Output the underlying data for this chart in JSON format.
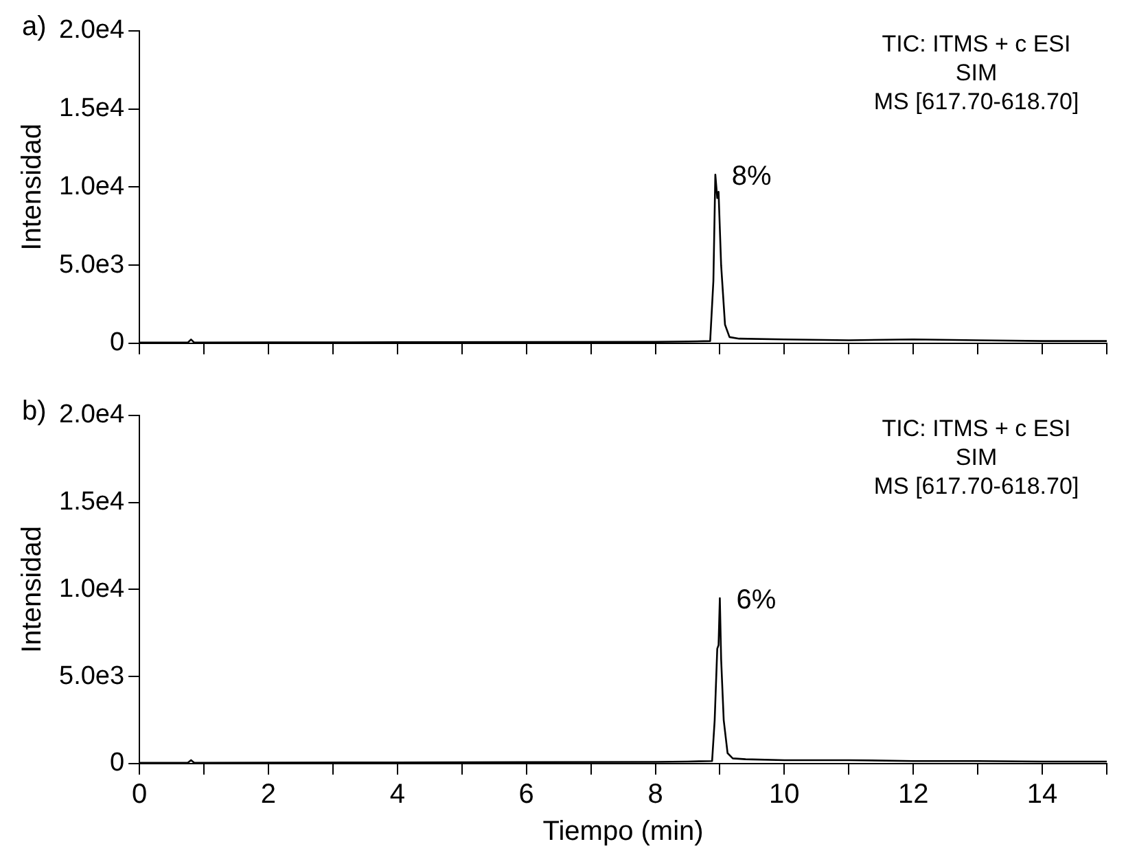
{
  "chart_data": [
    {
      "type": "line",
      "title": "a)",
      "ylabel": "Intensidad",
      "annotations": [
        "TIC: ITMS + c ESI",
        "SIM",
        "MS [617.70-618.70]",
        {
          "text": "8%",
          "x": 8.93,
          "y": 10800
        }
      ],
      "series": [
        {
          "color": "#000000",
          "x": [
            0,
            0.75,
            0.8,
            0.85,
            2,
            4,
            6,
            8,
            8.5,
            8.85,
            8.9,
            8.93,
            8.96,
            8.98,
            9.02,
            9.08,
            9.15,
            9.3,
            10,
            11,
            12,
            13,
            14,
            15
          ],
          "values": [
            50,
            50,
            250,
            50,
            60,
            70,
            90,
            100,
            120,
            150,
            4000,
            10800,
            9300,
            9700,
            5000,
            1200,
            400,
            300,
            250,
            200,
            250,
            200,
            150,
            150
          ]
        }
      ],
      "xlim": [
        0,
        15
      ],
      "xticks": [
        0,
        {
          "value": 1,
          "label": null
        },
        2,
        {
          "value": 3,
          "label": null
        },
        4,
        {
          "value": 5,
          "label": null
        },
        6,
        {
          "value": 7,
          "label": null
        },
        8,
        {
          "value": 9,
          "label": null
        },
        10,
        {
          "value": 11,
          "label": null
        },
        12,
        {
          "value": 13,
          "label": null
        },
        14,
        {
          "value": 15,
          "label": null
        }
      ],
      "ylim": [
        0,
        20000
      ],
      "yticks": [
        0,
        {
          "value": 5000,
          "label": "5.0e3"
        },
        {
          "value": 10000,
          "label": "1.0e4"
        },
        {
          "value": 15000,
          "label": "1.5e4"
        },
        {
          "value": 20000,
          "label": "2.0e4"
        }
      ],
      "tick_labels": "y",
      "grid": false,
      "legend": false,
      "marker": "none",
      "line_style": "solid"
    },
    {
      "type": "line",
      "title": "b)",
      "xlabel": "Tiempo (min)",
      "ylabel": "Intensidad",
      "annotations": [
        "TIC: ITMS + c ESI",
        "SIM",
        "MS [617.70-618.70]",
        {
          "text": "6%",
          "x": 9.0,
          "y": 9500
        }
      ],
      "series": [
        {
          "color": "#000000",
          "x": [
            0,
            0.75,
            0.8,
            0.85,
            2,
            4,
            6,
            8,
            8.5,
            8.88,
            8.92,
            8.96,
            8.98,
            9.0,
            9.02,
            9.06,
            9.12,
            9.2,
            9.4,
            10,
            11,
            12,
            13,
            14,
            15
          ],
          "values": [
            50,
            50,
            200,
            50,
            60,
            70,
            90,
            100,
            120,
            150,
            2500,
            6600,
            6800,
            9500,
            6000,
            2500,
            600,
            300,
            250,
            200,
            200,
            150,
            150,
            120,
            120
          ]
        }
      ],
      "xlim": [
        0,
        15
      ],
      "xticks": [
        0,
        {
          "value": 1,
          "label": null
        },
        2,
        {
          "value": 3,
          "label": null
        },
        4,
        {
          "value": 5,
          "label": null
        },
        6,
        {
          "value": 7,
          "label": null
        },
        8,
        {
          "value": 9,
          "label": null
        },
        10,
        {
          "value": 11,
          "label": null
        },
        12,
        {
          "value": 13,
          "label": null
        },
        14,
        {
          "value": 15,
          "label": null
        }
      ],
      "ylim": [
        0,
        20000
      ],
      "yticks": [
        0,
        {
          "value": 5000,
          "label": "5.0e3"
        },
        {
          "value": 10000,
          "label": "1.0e4"
        },
        {
          "value": 15000,
          "label": "1.5e4"
        },
        {
          "value": 20000,
          "label": "2.0e4"
        }
      ],
      "grid": false,
      "legend": false,
      "marker": "none",
      "line_style": "solid"
    }
  ]
}
